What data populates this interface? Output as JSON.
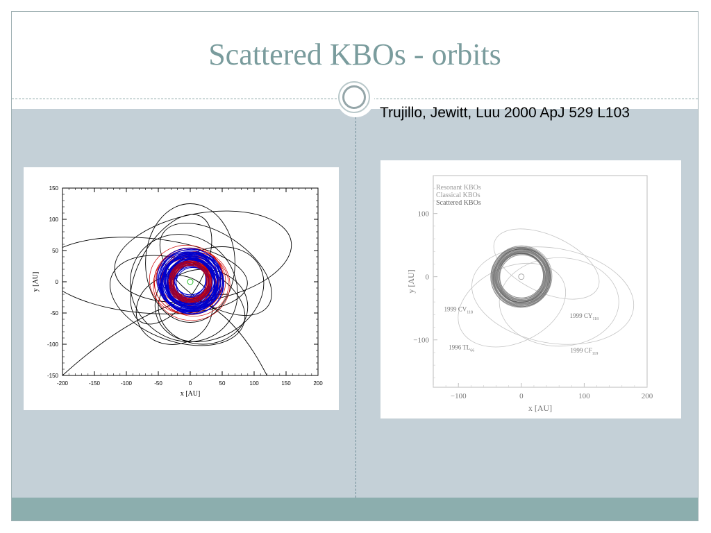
{
  "slide": {
    "title": "Scattered KBOs - orbits",
    "citation": "Trujillo, Jewitt, Luu 2000 ApJ 529 L103"
  },
  "colors": {
    "title": "#7a9c9d",
    "background": "#c4d0d7",
    "footer": "#8caeae",
    "scattered_orbits": "#000000",
    "classical_orbits": "#0000cc",
    "resonant_orbits": "#cc0000",
    "sun_marker": "#22bb22"
  },
  "chart_data": [
    {
      "type": "scatter",
      "xlabel": "x [AU]",
      "ylabel": "y [AU]",
      "xlim": [
        -200,
        200
      ],
      "ylim": [
        -150,
        150
      ],
      "xticks": [
        -200,
        -150,
        -100,
        -50,
        0,
        50,
        100,
        150,
        200
      ],
      "yticks": [
        -150,
        -100,
        -50,
        0,
        50,
        100,
        150
      ],
      "grid": false,
      "series": [
        {
          "color": "#000000",
          "ellipses": [
            {
              "cx": -70,
              "cy": 10,
              "rx": 160,
              "ry": 60,
              "rot": -5
            },
            {
              "cx": 20,
              "cy": 40,
              "rx": 140,
              "ry": 70,
              "rot": 10
            },
            {
              "cx": -20,
              "cy": -30,
              "rx": 110,
              "ry": 65,
              "rot": -20
            },
            {
              "cx": 0,
              "cy": 30,
              "rx": 70,
              "ry": 95,
              "rot": 0
            },
            {
              "cx": 30,
              "cy": -20,
              "rx": 90,
              "ry": 70,
              "rot": 30
            },
            {
              "cx": -10,
              "cy": -10,
              "rx": 80,
              "ry": 90,
              "rot": 45
            },
            {
              "cx": 40,
              "cy": 20,
              "rx": 100,
              "ry": 55,
              "rot": -35
            },
            {
              "cx": -30,
              "cy": 20,
              "rx": 95,
              "ry": 50,
              "rot": 60
            },
            {
              "cx": 20,
              "cy": -40,
              "rx": 70,
              "ry": 60,
              "rot": 0
            },
            {
              "cx": -25,
              "cy": -45,
              "rx": 60,
              "ry": 55,
              "rot": 15
            }
          ],
          "open_arcs": [
            {
              "from": [
                -200,
                -150
              ],
              "via": [
                -60,
                -20
              ],
              "to": [
                60,
                -20
              ]
            },
            {
              "from": [
                120,
                -150
              ],
              "via": [
                60,
                -30
              ],
              "to": [
                -20,
                -20
              ]
            }
          ]
        },
        {
          "color": "#0000cc",
          "ring": {
            "cx": 0,
            "cy": 0,
            "inner": 25,
            "outer": 50
          }
        },
        {
          "color": "#cc0000",
          "ring": {
            "cx": 0,
            "cy": 0,
            "inner": 30,
            "outer": 60
          }
        }
      ],
      "sun": {
        "x": 0,
        "y": 0
      }
    },
    {
      "type": "scatter",
      "xlabel": "x [AU]",
      "ylabel": "y [AU]",
      "xlim": [
        -140,
        200
      ],
      "ylim": [
        -175,
        160
      ],
      "xticks": [
        -100,
        0,
        100,
        200
      ],
      "yticks": [
        -100,
        0,
        100
      ],
      "xtick_labels": [
        "−100",
        "0",
        "100",
        "200"
      ],
      "ytick_labels": [
        "−100",
        "0",
        "100"
      ],
      "grid": false,
      "legend": {
        "position": "top-left",
        "entries": [
          "Resonant KBOs",
          "Classical KBOs",
          "Scattered KBOs"
        ]
      },
      "ring": {
        "cx": 0,
        "cy": 0,
        "inner": 35,
        "outer": 48
      },
      "ellipses": [
        {
          "cx": 50,
          "cy": -30,
          "rx": 130,
          "ry": 75,
          "rot": -10
        },
        {
          "cx": -15,
          "cy": -45,
          "rx": 90,
          "ry": 60,
          "rot": 25
        },
        {
          "cx": 60,
          "cy": -40,
          "rx": 95,
          "ry": 70,
          "rot": 0
        },
        {
          "cx": 40,
          "cy": 20,
          "rx": 90,
          "ry": 45,
          "rot": -25
        }
      ],
      "annotations": [
        {
          "text": "1999 CV",
          "sub": "118",
          "x": -100,
          "y": -55
        },
        {
          "text": "1999 CY",
          "sub": "118",
          "x": 100,
          "y": -65
        },
        {
          "text": "1996 TL",
          "sub": "66",
          "x": -95,
          "y": -115
        },
        {
          "text": "1999 CF",
          "sub": "119",
          "x": 100,
          "y": -120
        }
      ]
    }
  ]
}
